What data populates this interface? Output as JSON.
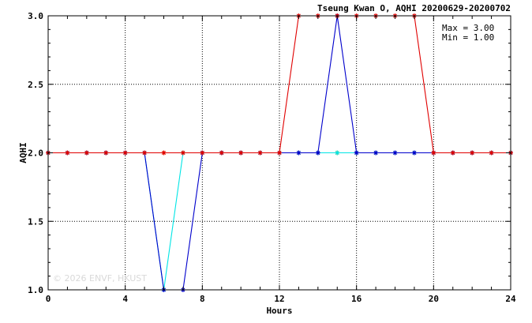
{
  "chart_data": {
    "type": "line",
    "title": "Tseung Kwan O, AQHI 20200629-20200702",
    "xlabel": "Hours",
    "ylabel": "AQHI",
    "xlim": [
      0,
      24
    ],
    "ylim": [
      1.0,
      3.0
    ],
    "x_ticks": [
      "0",
      "4",
      "8",
      "12",
      "16",
      "20",
      "24"
    ],
    "y_ticks": [
      "1.0",
      "1.5",
      "2.0",
      "2.5",
      "3.0"
    ],
    "grid": true,
    "stats": {
      "max": "Max = 3.00",
      "min": "Min = 1.00"
    },
    "watermark": "© 2026 ENVF, HKUST",
    "series": [
      {
        "color": "#ff8c00",
        "x": [
          0,
          1,
          2,
          3,
          4,
          5,
          6,
          7,
          8,
          9,
          10,
          11,
          12,
          13,
          14,
          15,
          16,
          17,
          18,
          19,
          20,
          21,
          22,
          23,
          24
        ],
        "values": [
          2,
          2,
          2,
          2,
          2,
          2,
          2,
          2,
          2,
          2,
          2,
          2,
          2,
          2,
          2,
          2,
          2,
          2,
          2,
          2,
          2,
          2,
          2,
          2,
          2
        ]
      },
      {
        "color": "#00e5e5",
        "x": [
          0,
          1,
          2,
          3,
          4,
          5,
          6,
          7,
          8,
          9,
          10,
          11,
          12,
          13,
          14,
          15,
          16,
          17,
          18,
          19,
          20,
          21,
          22,
          23,
          24
        ],
        "values": [
          2,
          2,
          2,
          2,
          2,
          2,
          1,
          2,
          2,
          2,
          2,
          2,
          2,
          2,
          2,
          2,
          2,
          2,
          2,
          2,
          2,
          2,
          2,
          2,
          2
        ]
      },
      {
        "color": "#0000cc",
        "x": [
          0,
          1,
          2,
          3,
          4,
          5,
          6,
          7,
          8,
          9,
          10,
          11,
          12,
          13,
          14,
          15,
          16,
          17,
          18,
          19,
          20,
          21,
          22,
          23,
          24
        ],
        "values": [
          2,
          2,
          2,
          2,
          2,
          2,
          1,
          1,
          2,
          2,
          2,
          2,
          2,
          2,
          2,
          3,
          2,
          2,
          2,
          2,
          2,
          2,
          2,
          2,
          2
        ]
      },
      {
        "color": "#e00000",
        "x": [
          0,
          1,
          2,
          3,
          4,
          5,
          6,
          7,
          8,
          9,
          10,
          11,
          12,
          13,
          14,
          15,
          16,
          17,
          18,
          19,
          20,
          21,
          22,
          23,
          24
        ],
        "values": [
          2,
          2,
          2,
          2,
          2,
          2,
          2,
          2,
          2,
          2,
          2,
          2,
          2,
          3,
          3,
          3,
          3,
          3,
          3,
          3,
          2,
          2,
          2,
          2,
          2
        ]
      }
    ]
  }
}
